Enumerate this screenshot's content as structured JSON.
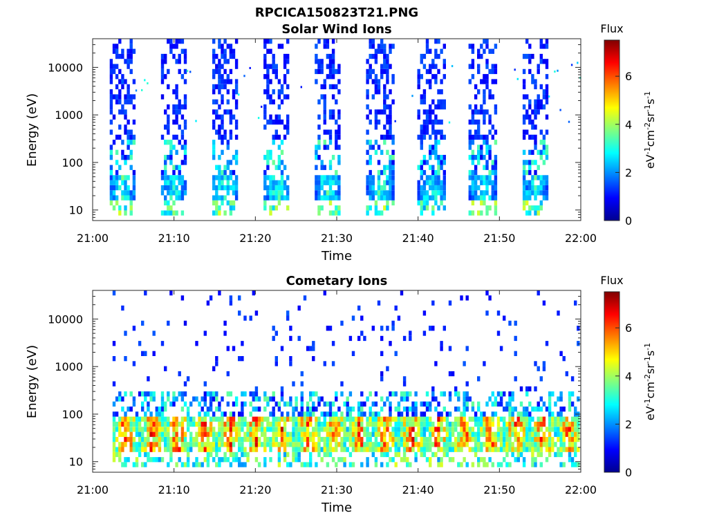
{
  "figure_title": "RPCICA150823T21.PNG",
  "colors": {
    "colormap": [
      "#00008f",
      "#0000ff",
      "#0080ff",
      "#00ffff",
      "#80ff80",
      "#ffff00",
      "#ff8000",
      "#ff0000",
      "#800000"
    ]
  },
  "chart_data": [
    {
      "type": "heatmap",
      "title": "Solar Wind Ions",
      "xlabel": "Time",
      "ylabel": "Energy (eV)",
      "x_ticks": [
        "21:00",
        "21:10",
        "21:20",
        "21:30",
        "21:40",
        "21:50",
        "22:00"
      ],
      "x_range": [
        "21:00",
        "22:00"
      ],
      "y_ticks": [
        "10",
        "100",
        "1000",
        "10000"
      ],
      "y_range": [
        6,
        40000
      ],
      "y_scale": "log",
      "colorbar": {
        "label_top": "Flux",
        "label_side": "eV-1cm-2sr-1s-1",
        "ticks": [
          "0",
          "2",
          "4",
          "6"
        ],
        "range": [
          0,
          7.5
        ]
      },
      "burst_centers_min": [
        3.5,
        9.8,
        16.2,
        22.5,
        28.8,
        35.2,
        41.5,
        47.8,
        54.2
      ],
      "burst_width_min": 3.2,
      "core_energy_eV": [
        15,
        60
      ],
      "core_flux": 3.5,
      "sparse_flux": 0.8
    },
    {
      "type": "heatmap",
      "title": "Cometary Ions",
      "xlabel": "Time",
      "ylabel": "Energy (eV)",
      "x_ticks": [
        "21:00",
        "21:10",
        "21:20",
        "21:30",
        "21:40",
        "21:50",
        "22:00"
      ],
      "x_range": [
        "21:00",
        "22:00"
      ],
      "y_ticks": [
        "10",
        "100",
        "1000",
        "10000"
      ],
      "y_range": [
        6,
        40000
      ],
      "y_scale": "log",
      "colorbar": {
        "label_top": "Flux",
        "label_side": "eV-1cm-2sr-1s-1",
        "ticks": [
          "0",
          "2",
          "4",
          "6"
        ],
        "range": [
          0,
          7.5
        ]
      },
      "data_start_min": 2.3,
      "data_end_min": 59.8,
      "period_min": 3.2,
      "core_energy_eV": [
        15,
        80
      ],
      "core_flux": 6.5,
      "sparse_flux": 0.8
    }
  ]
}
